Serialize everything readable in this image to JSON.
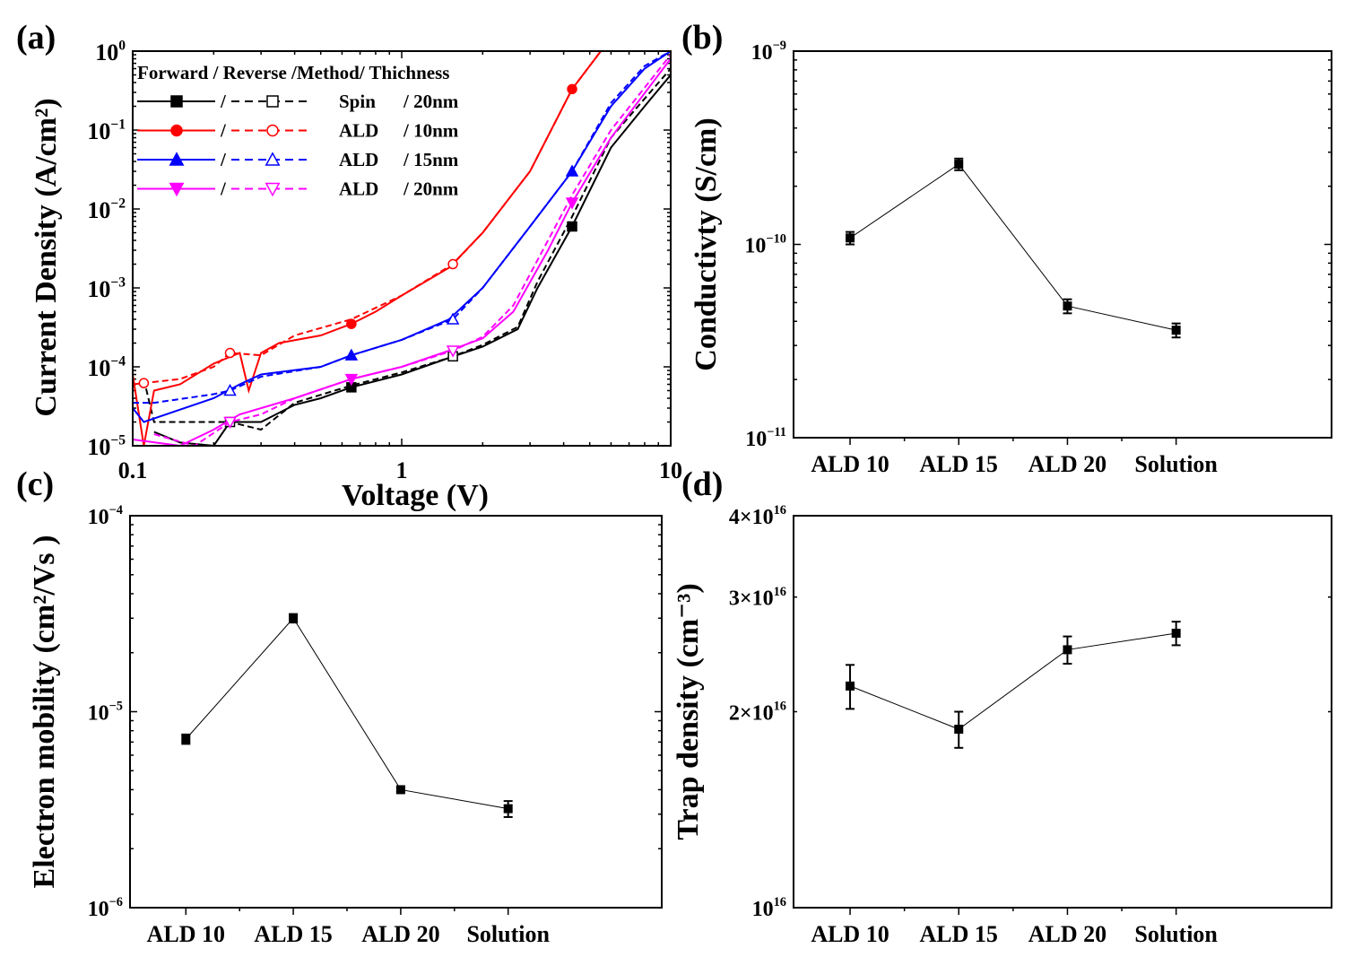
{
  "chart_data": [
    {
      "panel": "(a)",
      "type": "line",
      "xlabel": "Voltage (V)",
      "ylabel": "Current Density (A/cm²)",
      "xscale": "log",
      "yscale": "log",
      "xlim": [
        0.1,
        10
      ],
      "ylim": [
        1e-05,
        1
      ],
      "xticks": [
        "0.1",
        "1",
        "10"
      ],
      "yticks": [
        {
          "base": "10",
          "exp": "0"
        },
        {
          "base": "10",
          "exp": "−1"
        },
        {
          "base": "10",
          "exp": "−2"
        },
        {
          "base": "10",
          "exp": "−3"
        },
        {
          "base": "10",
          "exp": "−4"
        },
        {
          "base": "10",
          "exp": "−5"
        }
      ],
      "legend_title": "Forward / Reverse /Method/ Thichness",
      "legend_placement": "top-left",
      "series": [
        {
          "name": "Spin / 20nm",
          "method": "Spin",
          "thickness": "/ 20nm",
          "color": "#000000",
          "marker": "square",
          "forward": [
            [
              0.12,
              1.5e-05
            ],
            [
              0.15,
              1.1e-05
            ],
            [
              0.2,
              1e-05
            ],
            [
              0.23,
              2e-05
            ],
            [
              0.3,
              2e-05
            ],
            [
              0.4,
              3.3e-05
            ],
            [
              0.5,
              4e-05
            ],
            [
              0.65,
              5.5e-05
            ],
            [
              1,
              8e-05
            ],
            [
              1.5,
              0.00013
            ],
            [
              2,
              0.00018
            ],
            [
              2.7,
              0.0003
            ],
            [
              3.2,
              0.001
            ],
            [
              4.3,
              0.006
            ],
            [
              6,
              0.06
            ],
            [
              8,
              0.2
            ],
            [
              10,
              0.5
            ]
          ],
          "reverse": [
            [
              0.11,
              7e-05
            ],
            [
              0.12,
              2e-05
            ],
            [
              0.23,
              2e-05
            ],
            [
              0.3,
              1.6e-05
            ],
            [
              0.4,
              3.5e-05
            ],
            [
              0.65,
              5.8e-05
            ],
            [
              1,
              8.5e-05
            ],
            [
              1.5,
              0.00013
            ],
            [
              2,
              0.00019
            ],
            [
              2.7,
              0.00032
            ],
            [
              3.2,
              0.0012
            ],
            [
              4.3,
              0.008
            ],
            [
              6,
              0.08
            ],
            [
              8,
              0.25
            ],
            [
              10,
              0.6
            ]
          ],
          "forward_markers": [
            0.65,
            4.3
          ],
          "reverse_markers": [
            0.23,
            1.55
          ]
        },
        {
          "name": "ALD / 10nm",
          "method": "ALD",
          "thickness": "/ 10nm",
          "color": "#ff0000",
          "marker": "circle",
          "forward": [
            [
              0.1,
              8e-05
            ],
            [
              0.11,
              1e-05
            ],
            [
              0.12,
              5e-05
            ],
            [
              0.15,
              6e-05
            ],
            [
              0.2,
              0.00011
            ],
            [
              0.25,
              0.00015
            ],
            [
              0.27,
              5e-05
            ],
            [
              0.3,
              0.00015
            ],
            [
              0.35,
              0.0002
            ],
            [
              0.5,
              0.00025
            ],
            [
              0.65,
              0.00035
            ],
            [
              0.8,
              0.0005
            ],
            [
              1,
              0.0008
            ],
            [
              1.5,
              0.0018
            ],
            [
              2,
              0.005
            ],
            [
              3,
              0.03
            ],
            [
              4.3,
              0.33
            ],
            [
              5.5,
              1
            ],
            [
              10,
              1
            ]
          ],
          "reverse": [
            [
              0.1,
              6e-05
            ],
            [
              0.15,
              7e-05
            ],
            [
              0.2,
              0.0001
            ],
            [
              0.23,
              0.00015
            ],
            [
              0.3,
              0.00014
            ],
            [
              0.4,
              0.00025
            ],
            [
              0.65,
              0.0004
            ],
            [
              1,
              0.0008
            ],
            [
              1.55,
              0.002
            ],
            [
              2,
              0.005
            ],
            [
              3,
              0.03
            ],
            [
              4.3,
              0.33
            ],
            [
              5.5,
              1
            ],
            [
              10,
              1
            ]
          ],
          "forward_markers": [
            0.65,
            4.3
          ],
          "reverse_markers": [
            0.11,
            0.23,
            1.55
          ]
        },
        {
          "name": "ALD / 15nm",
          "method": "ALD",
          "thickness": "/ 15nm",
          "color": "#0000ff",
          "marker": "triangle-up",
          "forward": [
            [
              0.1,
              3e-05
            ],
            [
              0.11,
              2e-05
            ],
            [
              0.2,
              4e-05
            ],
            [
              0.25,
              6e-05
            ],
            [
              0.3,
              8e-05
            ],
            [
              0.5,
              0.0001
            ],
            [
              0.65,
              0.00014
            ],
            [
              1,
              0.00022
            ],
            [
              1.5,
              0.0004
            ],
            [
              2,
              0.001
            ],
            [
              3,
              0.006
            ],
            [
              4.3,
              0.03
            ],
            [
              6,
              0.2
            ],
            [
              8,
              0.6
            ],
            [
              10,
              1
            ]
          ],
          "reverse": [
            [
              0.1,
              3.5e-05
            ],
            [
              0.12,
              3.5e-05
            ],
            [
              0.2,
              4.5e-05
            ],
            [
              0.23,
              5e-05
            ],
            [
              0.3,
              7.5e-05
            ],
            [
              0.5,
              0.0001
            ],
            [
              0.65,
              0.00014
            ],
            [
              1,
              0.00022
            ],
            [
              1.55,
              0.0004
            ],
            [
              2,
              0.001
            ],
            [
              3,
              0.006
            ],
            [
              4.3,
              0.03
            ],
            [
              6,
              0.22
            ],
            [
              8,
              0.65
            ],
            [
              10,
              1
            ]
          ],
          "forward_markers": [
            0.65,
            4.3
          ],
          "reverse_markers": [
            0.23,
            1.55
          ]
        },
        {
          "name": "ALD / 20nm",
          "method": "ALD",
          "thickness": "/ 20nm",
          "color": "#ff00ff",
          "marker": "triangle-down",
          "forward": [
            [
              0.1,
              1.2e-05
            ],
            [
              0.15,
              1e-05
            ],
            [
              0.2,
              1.6e-05
            ],
            [
              0.25,
              2.5e-05
            ],
            [
              0.4,
              4e-05
            ],
            [
              0.65,
              7e-05
            ],
            [
              1,
              0.0001
            ],
            [
              1.5,
              0.00016
            ],
            [
              2,
              0.00023
            ],
            [
              2.6,
              0.0005
            ],
            [
              3.5,
              0.003
            ],
            [
              4.3,
              0.012
            ],
            [
              6,
              0.08
            ],
            [
              10,
              0.8
            ]
          ],
          "reverse": [
            [
              0.12,
              1.4e-05
            ],
            [
              0.17,
              1e-05
            ],
            [
              0.23,
              2e-05
            ],
            [
              0.3,
              2.5e-05
            ],
            [
              0.4,
              4e-05
            ],
            [
              0.65,
              7e-05
            ],
            [
              1,
              0.0001
            ],
            [
              1.55,
              0.00016
            ],
            [
              2,
              0.00024
            ],
            [
              2.6,
              0.0006
            ],
            [
              3.5,
              0.004
            ],
            [
              4.3,
              0.015
            ],
            [
              6,
              0.1
            ],
            [
              10,
              0.9
            ]
          ],
          "forward_markers": [
            0.65,
            4.3
          ],
          "reverse_markers": [
            0.23,
            1.55
          ]
        }
      ]
    },
    {
      "panel": "(b)",
      "type": "line",
      "ylabel": "Conductivty (S/cm)",
      "yscale": "log",
      "ylim": [
        1e-11,
        1e-09
      ],
      "yticks": [
        {
          "base": "10",
          "exp": "−9"
        },
        {
          "base": "10",
          "exp": "−10"
        },
        {
          "base": "10",
          "exp": "−11"
        }
      ],
      "categories": [
        "ALD 10",
        "ALD 15",
        "ALD 20",
        "Solution"
      ],
      "values": [
        1.08e-10,
        2.6e-10,
        4.8e-11,
        3.6e-11
      ],
      "errors": [
        8e-12,
        1.8e-11,
        4e-12,
        3e-12
      ]
    },
    {
      "panel": "(c)",
      "type": "line",
      "ylabel": "Electron mobility (cm²/Vs )",
      "yscale": "log",
      "ylim": [
        1e-06,
        0.0001
      ],
      "yticks": [
        {
          "base": "10",
          "exp": "−4"
        },
        {
          "base": "10",
          "exp": "−5"
        },
        {
          "base": "10",
          "exp": "−6"
        }
      ],
      "categories": [
        "ALD 10",
        "ALD 15",
        "ALD 20",
        "Solution"
      ],
      "values": [
        7.25e-06,
        3e-05,
        4e-06,
        3.2e-06
      ],
      "errors": [
        4e-07,
        1.5e-06,
        1e-07,
        3e-07
      ]
    },
    {
      "panel": "(d)",
      "type": "line",
      "ylabel": "Trap density (cm⁻³)",
      "yscale": "log",
      "ylim": [
        1e+16,
        4e+16
      ],
      "yticks": [
        {
          "base": "4×10",
          "exp": "16",
          "value": 4e+16
        },
        {
          "base": "3×10",
          "exp": "16",
          "value": 3e+16
        },
        {
          "base": "2×10",
          "exp": "16",
          "value": 2e+16
        },
        {
          "base": "10",
          "exp": "16",
          "value": 1e+16
        }
      ],
      "categories": [
        "ALD 10",
        "ALD 15",
        "ALD 20",
        "Solution"
      ],
      "values": [
        2.19e+16,
        1.88e+16,
        2.49e+16,
        2.64e+16
      ],
      "errors": [
        1700000000000000.0,
        1200000000000000.0,
        1200000000000000.0,
        1100000000000000.0
      ]
    }
  ]
}
